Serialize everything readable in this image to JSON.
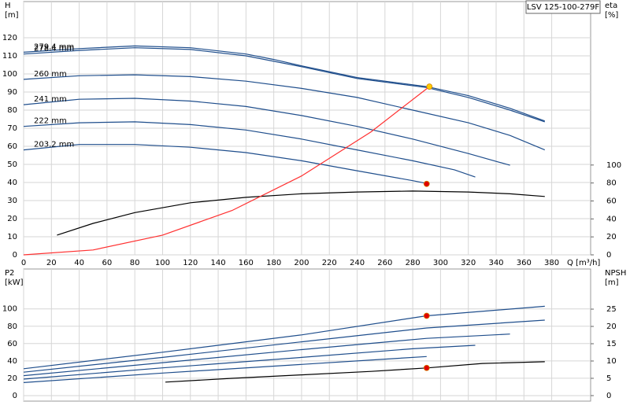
{
  "chart_data": [
    {
      "type": "line",
      "title": "LSV 125-100-279F",
      "y_label": [
        "H",
        "[m]"
      ],
      "y2_label": [
        "eta",
        "[%]"
      ],
      "x_label": "Q [m³/h]",
      "xlim": [
        0,
        408
      ],
      "ylim": [
        0,
        140
      ],
      "y2lim": [
        0,
        282
      ],
      "xticks": [
        0,
        20,
        40,
        60,
        80,
        100,
        120,
        140,
        160,
        180,
        200,
        220,
        240,
        260,
        280,
        300,
        320,
        340,
        360,
        380
      ],
      "yticks": [
        0,
        10,
        20,
        30,
        40,
        50,
        60,
        70,
        80,
        90,
        100,
        110,
        120
      ],
      "y2ticks": [
        0,
        20,
        40,
        60,
        80,
        100
      ],
      "grid": true,
      "series": [
        {
          "name": "279.4 mm",
          "color": "#1f4e8c",
          "x": [
            0,
            40,
            80,
            120,
            160,
            180,
            200,
            240,
            290,
            320,
            350,
            375
          ],
          "values": [
            112,
            114,
            115.5,
            114.5,
            111,
            108,
            104.5,
            98,
            93,
            88,
            81,
            74
          ]
        },
        {
          "name": "278.4 mm",
          "color": "#1f4e8c",
          "x": [
            0,
            40,
            80,
            120,
            160,
            200,
            240,
            290,
            320,
            350,
            375
          ],
          "values": [
            111,
            113,
            114.5,
            113.5,
            110,
            104,
            97.5,
            92.5,
            87,
            80,
            73.5
          ]
        },
        {
          "name": "260 mm",
          "color": "#1f4e8c",
          "x": [
            0,
            40,
            80,
            120,
            160,
            200,
            240,
            280,
            320,
            350,
            375
          ],
          "values": [
            97,
            99,
            99.5,
            98.5,
            96,
            92,
            87,
            80,
            73,
            66,
            58
          ]
        },
        {
          "name": "241 mm",
          "color": "#1f4e8c",
          "x": [
            0,
            40,
            80,
            120,
            160,
            200,
            240,
            280,
            320,
            350
          ],
          "values": [
            83,
            86,
            86.5,
            85,
            82,
            77,
            71,
            64,
            56,
            49.5
          ]
        },
        {
          "name": "222 mm",
          "color": "#1f4e8c",
          "x": [
            0,
            40,
            80,
            120,
            160,
            200,
            240,
            280,
            310,
            325
          ],
          "values": [
            71,
            73,
            73.5,
            72,
            69,
            64,
            58,
            52,
            47,
            43
          ]
        },
        {
          "name": "203.2 mm",
          "color": "#1f4e8c",
          "x": [
            0,
            40,
            80,
            120,
            160,
            200,
            240,
            280,
            290
          ],
          "values": [
            58,
            61,
            61,
            59.5,
            56.5,
            52,
            46.5,
            41,
            39.5
          ]
        },
        {
          "color": "#000000",
          "axis": "y2",
          "x": [
            24,
            50,
            80,
            120,
            160,
            200,
            240,
            280,
            320,
            350,
            375
          ],
          "values": [
            22,
            35,
            47,
            58,
            64,
            68,
            70,
            71,
            70,
            68,
            65
          ]
        },
        {
          "color": "#ff3030",
          "x": [
            0,
            50,
            100,
            150,
            200,
            250,
            292
          ],
          "values": [
            0,
            2.7,
            10.9,
            24.5,
            43.6,
            68,
            93
          ]
        },
        {
          "color": "#ffcc00",
          "marker": "circle",
          "x": [
            292
          ],
          "values": [
            93
          ]
        },
        {
          "color": "#e00000",
          "marker": "circle",
          "axis": "y2",
          "x": [
            290
          ],
          "values": [
            79
          ]
        }
      ]
    },
    {
      "type": "line",
      "y_label": [
        "P2",
        "[kW]"
      ],
      "y2_label": [
        "NPSH",
        "[m]"
      ],
      "xlim": [
        0,
        408
      ],
      "ylim": [
        -6.4,
        146
      ],
      "y2lim": [
        -1.6,
        36.6
      ],
      "xticks": [
        0,
        20,
        40,
        60,
        80,
        100,
        120,
        140,
        160,
        180,
        200,
        220,
        240,
        260,
        280,
        300,
        320,
        340,
        360,
        380
      ],
      "yticks": [
        0,
        20,
        40,
        60,
        80,
        100
      ],
      "y2ticks": [
        0,
        5,
        10,
        15,
        20,
        25
      ],
      "grid": true,
      "series": [
        {
          "color": "#1f4e8c",
          "x": [
            0,
            100,
            200,
            290,
            375
          ],
          "values": [
            31,
            50,
            70,
            92,
            103
          ]
        },
        {
          "color": "#1f4e8c",
          "x": [
            0,
            100,
            200,
            290,
            375
          ],
          "values": [
            27,
            44,
            62,
            78,
            87
          ]
        },
        {
          "color": "#1f4e8c",
          "x": [
            0,
            100,
            200,
            290,
            350
          ],
          "values": [
            23,
            38,
            53,
            66,
            71
          ]
        },
        {
          "color": "#1f4e8c",
          "x": [
            0,
            100,
            200,
            280,
            325
          ],
          "values": [
            19,
            32,
            44,
            54,
            58
          ]
        },
        {
          "color": "#1f4e8c",
          "x": [
            0,
            100,
            200,
            260,
            290
          ],
          "values": [
            15,
            26,
            36,
            42,
            45
          ]
        },
        {
          "color": "#000000",
          "axis": "y2",
          "x": [
            102,
            150,
            200,
            250,
            290,
            330,
            375
          ],
          "values": [
            3.9,
            5,
            6,
            7,
            8,
            9.3,
            9.8
          ]
        },
        {
          "color": "#e00000",
          "marker": "circle",
          "x": [
            290
          ],
          "values": [
            92
          ]
        },
        {
          "color": "#e00000",
          "marker": "circle",
          "axis": "y2",
          "x": [
            290
          ],
          "values": [
            8
          ]
        }
      ]
    }
  ]
}
